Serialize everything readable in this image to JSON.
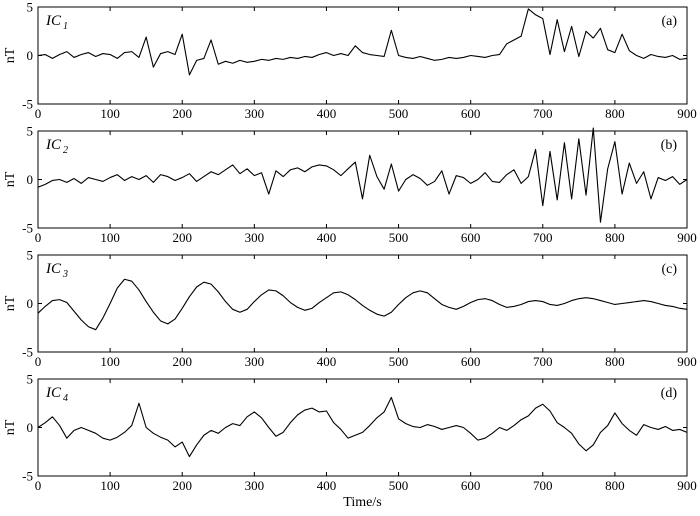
{
  "chart_data": [
    {
      "type": "line",
      "panel_tag": "(a)",
      "series_label": "IC",
      "series_sub": "1",
      "ylabel": "nT",
      "xlim": [
        0,
        900
      ],
      "ylim": [
        -5,
        5
      ],
      "xticks": [
        0,
        100,
        200,
        300,
        400,
        500,
        600,
        700,
        800,
        900
      ],
      "yticks": [
        5,
        0,
        -5
      ],
      "x_step": 10,
      "values": [
        0,
        0.1,
        -0.3,
        0.1,
        0.4,
        -0.2,
        0.1,
        0.3,
        -0.1,
        0.2,
        0.1,
        -0.3,
        0.3,
        0.4,
        -0.2,
        1.9,
        -1.2,
        0.2,
        0.4,
        0.1,
        2.2,
        -2.0,
        -0.5,
        -0.3,
        1.6,
        -0.9,
        -0.6,
        -0.8,
        -0.5,
        -0.7,
        -0.6,
        -0.4,
        -0.5,
        -0.3,
        -0.4,
        -0.2,
        -0.3,
        -0.1,
        -0.2,
        0.1,
        0.3,
        0.0,
        0.2,
        0.0,
        1.0,
        0.3,
        0.1,
        0.0,
        -0.1,
        2.6,
        0.0,
        -0.2,
        -0.3,
        -0.1,
        -0.3,
        -0.5,
        -0.4,
        -0.2,
        -0.3,
        -0.2,
        0.0,
        -0.1,
        -0.2,
        0.0,
        0.1,
        1.2,
        1.6,
        2.0,
        4.8,
        4.2,
        3.8,
        0.1,
        3.7,
        0.4,
        3.0,
        -0.1,
        2.5,
        1.8,
        2.8,
        0.6,
        0.3,
        2.2,
        0.5,
        0.0,
        -0.3,
        0.1,
        -0.1,
        -0.2,
        0.0,
        -0.4,
        -0.3
      ]
    },
    {
      "type": "line",
      "panel_tag": "(b)",
      "series_label": "IC",
      "series_sub": "2",
      "ylabel": "nT",
      "xlim": [
        0,
        900
      ],
      "ylim": [
        -5,
        5
      ],
      "xticks": [
        0,
        100,
        200,
        300,
        400,
        500,
        600,
        700,
        800,
        900
      ],
      "yticks": [
        5,
        0,
        -5
      ],
      "x_step": 10,
      "values": [
        -0.8,
        -0.5,
        -0.1,
        0.0,
        -0.3,
        0.1,
        -0.4,
        0.2,
        0.0,
        -0.2,
        0.2,
        0.5,
        -0.1,
        0.3,
        0.0,
        0.4,
        -0.3,
        0.5,
        0.3,
        -0.1,
        0.2,
        0.6,
        -0.2,
        0.3,
        0.8,
        0.5,
        1.0,
        1.5,
        0.6,
        1.1,
        0.4,
        0.7,
        -1.5,
        0.9,
        0.3,
        1.0,
        1.2,
        0.8,
        1.3,
        1.5,
        1.4,
        1.0,
        0.4,
        1.1,
        1.8,
        -2.0,
        2.5,
        0.3,
        -1.0,
        1.6,
        -1.2,
        0.0,
        0.5,
        0.1,
        -0.6,
        -0.2,
        0.9,
        -1.5,
        0.4,
        0.2,
        -0.4,
        0.0,
        0.7,
        -0.2,
        -0.3,
        0.5,
        1.0,
        -0.4,
        0.3,
        3.1,
        -2.7,
        2.9,
        -2.1,
        3.8,
        -2.0,
        4.2,
        -1.6,
        5.3,
        -4.4,
        1.1,
        3.9,
        -1.5,
        1.7,
        -0.4,
        0.8,
        -2.0,
        0.2,
        -0.1,
        0.3,
        -0.5,
        0.0
      ]
    },
    {
      "type": "line",
      "panel_tag": "(c)",
      "series_label": "IC",
      "series_sub": "3",
      "ylabel": "nT",
      "xlim": [
        0,
        900
      ],
      "ylim": [
        -5,
        5
      ],
      "xticks": [
        0,
        100,
        200,
        300,
        400,
        500,
        600,
        700,
        800,
        900
      ],
      "yticks": [
        5,
        0,
        -5
      ],
      "x_step": 10,
      "values": [
        -1.0,
        -0.3,
        0.3,
        0.4,
        0.1,
        -0.8,
        -1.7,
        -2.4,
        -2.7,
        -1.5,
        0.0,
        1.6,
        2.5,
        2.3,
        1.4,
        0.2,
        -0.9,
        -1.8,
        -2.1,
        -1.6,
        -0.5,
        0.7,
        1.7,
        2.2,
        2.0,
        1.2,
        0.2,
        -0.6,
        -0.9,
        -0.6,
        0.2,
        0.9,
        1.4,
        1.3,
        0.8,
        0.1,
        -0.4,
        -0.7,
        -0.5,
        0.1,
        0.6,
        1.1,
        1.2,
        0.9,
        0.4,
        -0.2,
        -0.7,
        -1.1,
        -1.3,
        -0.9,
        -0.1,
        0.6,
        1.1,
        1.3,
        1.1,
        0.5,
        -0.1,
        -0.4,
        -0.6,
        -0.3,
        0.1,
        0.4,
        0.5,
        0.3,
        -0.1,
        -0.4,
        -0.3,
        -0.1,
        0.2,
        0.3,
        0.2,
        -0.1,
        -0.2,
        0.0,
        0.3,
        0.5,
        0.6,
        0.5,
        0.3,
        0.1,
        -0.1,
        0.0,
        0.1,
        0.2,
        0.3,
        0.2,
        0.0,
        -0.2,
        -0.3,
        -0.5,
        -0.6
      ]
    },
    {
      "type": "line",
      "panel_tag": "(d)",
      "series_label": "IC",
      "series_sub": "4",
      "ylabel": "nT",
      "xlabel": "Time/s",
      "xlim": [
        0,
        900
      ],
      "ylim": [
        -5,
        5
      ],
      "xticks": [
        0,
        100,
        200,
        300,
        400,
        500,
        600,
        700,
        800,
        900
      ],
      "yticks": [
        5,
        0,
        -5
      ],
      "x_step": 10,
      "values": [
        0.0,
        0.5,
        1.1,
        0.2,
        -1.1,
        -0.3,
        0.0,
        -0.3,
        -0.6,
        -1.1,
        -1.3,
        -1.0,
        -0.5,
        0.2,
        2.5,
        0.0,
        -0.6,
        -1.0,
        -1.3,
        -2.0,
        -1.5,
        -3.0,
        -1.8,
        -0.8,
        -0.3,
        -0.6,
        0.0,
        0.4,
        0.2,
        1.1,
        1.6,
        1.0,
        0.0,
        -0.9,
        -0.5,
        0.5,
        1.3,
        1.8,
        2.0,
        1.6,
        1.7,
        0.5,
        -0.2,
        -1.1,
        -0.8,
        -0.5,
        0.2,
        1.0,
        1.6,
        3.1,
        0.9,
        0.4,
        0.1,
        0.0,
        0.3,
        0.1,
        -0.2,
        0.0,
        0.2,
        0.0,
        -0.6,
        -1.3,
        -1.1,
        -0.6,
        0.0,
        -0.3,
        0.2,
        0.8,
        1.2,
        2.0,
        2.4,
        1.7,
        0.5,
        0.0,
        -0.6,
        -1.7,
        -2.4,
        -1.8,
        -0.5,
        0.2,
        1.5,
        0.4,
        -0.3,
        -0.8,
        0.3,
        0.0,
        -0.2,
        0.1,
        -0.3,
        -0.2,
        -0.5
      ]
    }
  ]
}
